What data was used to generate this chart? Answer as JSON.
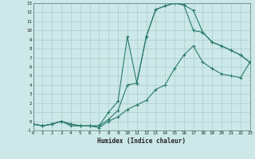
{
  "xlabel": "Humidex (Indice chaleur)",
  "bg_color": "#cce8e8",
  "grid_major_color": "#aacccc",
  "grid_minor_color": "#bbd8d8",
  "line_color": "#2a7a6a",
  "line1_x": [
    0,
    1,
    2,
    3,
    4,
    5,
    6,
    7,
    8,
    9,
    10,
    11,
    12,
    13,
    14,
    15,
    16,
    17,
    18,
    19,
    20,
    21,
    22,
    23
  ],
  "line1_y": [
    -0.3,
    -0.5,
    -0.3,
    0.0,
    -0.3,
    -0.5,
    -0.5,
    -0.5,
    1.0,
    2.2,
    9.3,
    4.2,
    9.3,
    12.3,
    12.7,
    13.0,
    12.8,
    12.2,
    9.8,
    8.7,
    8.3,
    7.8,
    7.3,
    6.5
  ],
  "line2_x": [
    0,
    1,
    2,
    3,
    4,
    5,
    6,
    7,
    8,
    9,
    10,
    11,
    12,
    13,
    14,
    15,
    16,
    17,
    18,
    19,
    20,
    21,
    22,
    23
  ],
  "line2_y": [
    -0.3,
    -0.5,
    -0.3,
    0.0,
    -0.3,
    -0.5,
    -0.5,
    -0.5,
    0.2,
    1.2,
    4.0,
    4.2,
    9.3,
    12.3,
    12.7,
    13.0,
    12.8,
    10.0,
    9.8,
    8.7,
    8.3,
    7.8,
    7.3,
    6.5
  ],
  "line3_x": [
    0,
    1,
    2,
    3,
    4,
    5,
    6,
    7,
    8,
    9,
    10,
    11,
    12,
    13,
    14,
    15,
    16,
    17,
    18,
    19,
    20,
    21,
    22,
    23
  ],
  "line3_y": [
    -0.3,
    -0.5,
    -0.3,
    0.0,
    -0.5,
    -0.5,
    -0.5,
    -0.7,
    0.0,
    0.5,
    1.3,
    1.8,
    2.3,
    3.5,
    4.0,
    5.8,
    7.3,
    8.3,
    6.5,
    5.8,
    5.2,
    5.0,
    4.8,
    6.5
  ],
  "ylim": [
    -1,
    13
  ],
  "xlim": [
    0,
    23
  ],
  "yticks": [
    -1,
    0,
    1,
    2,
    3,
    4,
    5,
    6,
    7,
    8,
    9,
    10,
    11,
    12,
    13
  ],
  "xticks": [
    0,
    1,
    2,
    3,
    4,
    5,
    6,
    7,
    8,
    9,
    10,
    11,
    12,
    13,
    14,
    15,
    16,
    17,
    18,
    19,
    20,
    21,
    22,
    23
  ]
}
